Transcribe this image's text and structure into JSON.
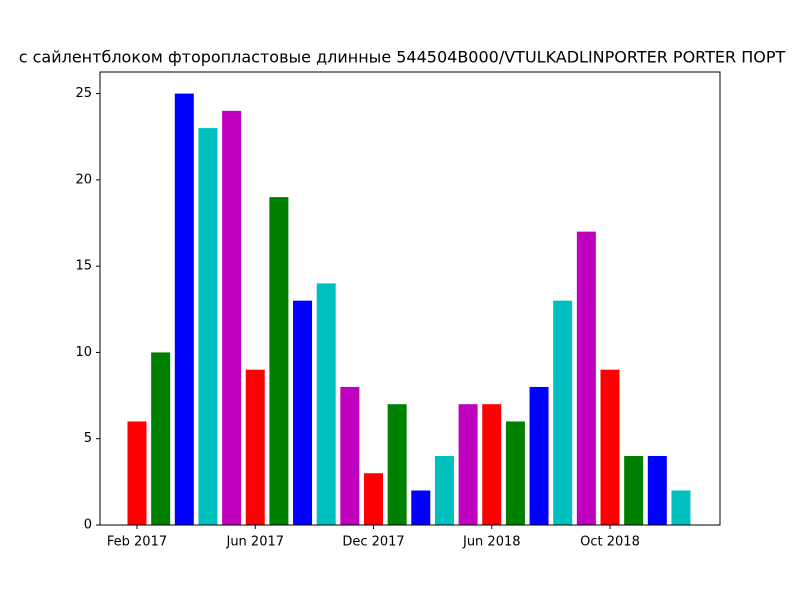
{
  "chart_data": {
    "type": "bar",
    "title": "с сайлентблоком фторопластовые длинные 544504B000/VTULKADLINPORTER  PORTER ПОРТ",
    "categories": [
      "Feb 2017",
      null,
      null,
      null,
      null,
      "Jun 2017",
      null,
      null,
      null,
      null,
      "Dec 2017",
      null,
      null,
      null,
      null,
      "Jun 2018",
      null,
      null,
      null,
      null,
      "Oct 2018",
      null,
      null,
      null
    ],
    "values": [
      6,
      10,
      25,
      23,
      24,
      9,
      19,
      13,
      14,
      8,
      3,
      7,
      2,
      4,
      7,
      7,
      6,
      8,
      13,
      17,
      9,
      4,
      4,
      2
    ],
    "colors": [
      "#ff0000",
      "#008000",
      "#0000ff",
      "#00bfbf",
      "#bf00bf"
    ],
    "ylim": [
      0,
      26.25
    ],
    "yticks": [
      0,
      5,
      10,
      15,
      20,
      25
    ],
    "grid": false
  }
}
